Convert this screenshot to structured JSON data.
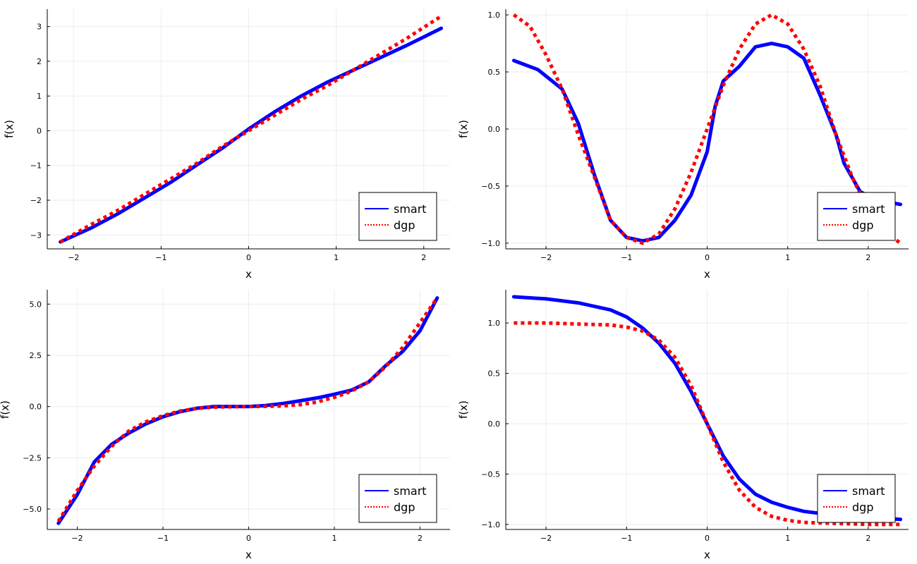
{
  "chart_data": [
    {
      "type": "line",
      "xlabel": "x",
      "ylabel": "f(x)",
      "xlim": [
        -2.3,
        2.3
      ],
      "ylim": [
        -3.4,
        3.5
      ],
      "xticks": [
        -2,
        -1,
        0,
        1,
        2
      ],
      "xtick_labels": [
        "−2",
        "−1",
        "0",
        "1",
        "2"
      ],
      "yticks": [
        -3,
        -2,
        -1,
        0,
        1,
        2,
        3
      ],
      "ytick_labels": [
        "−3",
        "−2",
        "−1",
        "0",
        "1",
        "2",
        "3"
      ],
      "grid": true,
      "legend_position": "bottom-right",
      "series": [
        {
          "name": "smart",
          "color": "#0000ff",
          "style": "solid",
          "x": [
            -2.15,
            -1.8,
            -1.5,
            -1.2,
            -0.9,
            -0.6,
            -0.3,
            0,
            0.3,
            0.6,
            0.9,
            1.2,
            1.5,
            1.8,
            2.2
          ],
          "y": [
            -3.2,
            -2.8,
            -2.4,
            -1.95,
            -1.5,
            -1.0,
            -0.5,
            0.05,
            0.55,
            1.0,
            1.4,
            1.75,
            2.1,
            2.45,
            2.95
          ]
        },
        {
          "name": "dgp",
          "color": "#ff0000",
          "style": "dotted",
          "x": [
            -2.15,
            -1.8,
            -1.5,
            -1.2,
            -0.9,
            -0.6,
            -0.3,
            0,
            0.3,
            0.6,
            0.9,
            1.2,
            1.5,
            1.8,
            2.2
          ],
          "y": [
            -3.2,
            -2.7,
            -2.3,
            -1.85,
            -1.4,
            -0.95,
            -0.45,
            0,
            0.45,
            0.9,
            1.3,
            1.75,
            2.2,
            2.65,
            3.3
          ]
        }
      ]
    },
    {
      "type": "line",
      "xlabel": "x",
      "ylabel": "f(x)",
      "xlim": [
        -2.5,
        2.5
      ],
      "ylim": [
        -1.05,
        1.05
      ],
      "xticks": [
        -2,
        -1,
        0,
        1,
        2
      ],
      "xtick_labels": [
        "−2",
        "−1",
        "0",
        "1",
        "2"
      ],
      "yticks": [
        -1.0,
        -0.5,
        0.0,
        0.5,
        1.0
      ],
      "ytick_labels": [
        "−1.0",
        "−0.5",
        "0.0",
        "0.5",
        "1.0"
      ],
      "grid": true,
      "legend_position": "bottom-right",
      "series": [
        {
          "name": "smart",
          "color": "#0000ff",
          "style": "solid",
          "x": [
            -2.4,
            -2.1,
            -1.8,
            -1.6,
            -1.4,
            -1.2,
            -1.0,
            -0.8,
            -0.6,
            -0.4,
            -0.2,
            0,
            0.1,
            0.2,
            0.4,
            0.6,
            0.8,
            1.0,
            1.2,
            1.4,
            1.6,
            1.7,
            1.9,
            2.1,
            2.4
          ],
          "y": [
            0.6,
            0.52,
            0.35,
            0.05,
            -0.4,
            -0.8,
            -0.95,
            -0.98,
            -0.95,
            -0.8,
            -0.58,
            -0.2,
            0.2,
            0.42,
            0.55,
            0.72,
            0.75,
            0.72,
            0.62,
            0.3,
            -0.05,
            -0.3,
            -0.55,
            -0.62,
            -0.66
          ]
        },
        {
          "name": "dgp",
          "color": "#ff0000",
          "style": "dotted",
          "x": [
            -2.4,
            -2.2,
            -2.0,
            -1.8,
            -1.6,
            -1.4,
            -1.2,
            -1.0,
            -0.8,
            -0.6,
            -0.4,
            -0.2,
            0,
            0.2,
            0.4,
            0.6,
            0.8,
            1.0,
            1.2,
            1.4,
            1.6,
            1.8,
            2.0,
            2.2,
            2.4
          ],
          "y": [
            1.0,
            0.9,
            0.65,
            0.35,
            -0.05,
            -0.42,
            -0.8,
            -0.95,
            -1.0,
            -0.92,
            -0.7,
            -0.38,
            0.0,
            0.38,
            0.7,
            0.92,
            1.0,
            0.92,
            0.7,
            0.38,
            -0.05,
            -0.42,
            -0.72,
            -0.9,
            -1.0
          ]
        }
      ]
    },
    {
      "type": "line",
      "xlabel": "x",
      "ylabel": "f(x)",
      "xlim": [
        -2.35,
        2.35
      ],
      "ylim": [
        -6.0,
        5.7
      ],
      "xticks": [
        -2,
        -1,
        0,
        1,
        2
      ],
      "xtick_labels": [
        "−2",
        "−1",
        "0",
        "1",
        "2"
      ],
      "yticks": [
        -5.0,
        -2.5,
        0.0,
        2.5,
        5.0
      ],
      "ytick_labels": [
        "−5.0",
        "−2.5",
        "0.0",
        "2.5",
        "5.0"
      ],
      "grid": true,
      "legend_position": "bottom-right",
      "series": [
        {
          "name": "smart",
          "color": "#0000ff",
          "style": "solid",
          "x": [
            -2.22,
            -2.0,
            -1.8,
            -1.6,
            -1.4,
            -1.2,
            -1.0,
            -0.8,
            -0.6,
            -0.4,
            -0.2,
            0,
            0.2,
            0.4,
            0.6,
            0.8,
            1.0,
            1.2,
            1.4,
            1.6,
            1.8,
            2.0,
            2.2
          ],
          "y": [
            -5.7,
            -4.3,
            -2.7,
            -1.85,
            -1.3,
            -0.85,
            -0.5,
            -0.25,
            -0.08,
            0.0,
            0.0,
            0.0,
            0.05,
            0.15,
            0.28,
            0.42,
            0.6,
            0.8,
            1.2,
            2.0,
            2.7,
            3.7,
            5.3
          ]
        },
        {
          "name": "dgp",
          "color": "#ff0000",
          "style": "dotted",
          "x": [
            -2.22,
            -2.0,
            -1.8,
            -1.6,
            -1.4,
            -1.2,
            -1.0,
            -0.8,
            -0.6,
            -0.4,
            -0.2,
            0,
            0.2,
            0.4,
            0.6,
            0.8,
            1.0,
            1.2,
            1.4,
            1.6,
            1.8,
            2.0,
            2.2
          ],
          "y": [
            -5.6,
            -4.1,
            -2.9,
            -1.95,
            -1.2,
            -0.75,
            -0.45,
            -0.22,
            -0.09,
            -0.03,
            -0.01,
            0.0,
            0.01,
            0.03,
            0.09,
            0.22,
            0.45,
            0.75,
            1.2,
            1.95,
            2.9,
            4.1,
            5.3
          ]
        }
      ]
    },
    {
      "type": "line",
      "xlabel": "x",
      "ylabel": "f(x)",
      "xlim": [
        -2.5,
        2.5
      ],
      "ylim": [
        -1.05,
        1.33
      ],
      "xticks": [
        -2,
        -1,
        0,
        1,
        2
      ],
      "xtick_labels": [
        "−2",
        "−1",
        "0",
        "1",
        "2"
      ],
      "yticks": [
        -1.0,
        -0.5,
        0.0,
        0.5,
        1.0
      ],
      "ytick_labels": [
        "−1.0",
        "−0.5",
        "0.0",
        "0.5",
        "1.0"
      ],
      "grid": true,
      "legend_position": "bottom-right",
      "series": [
        {
          "name": "smart",
          "color": "#0000ff",
          "style": "solid",
          "x": [
            -2.4,
            -2.0,
            -1.6,
            -1.2,
            -1.0,
            -0.8,
            -0.6,
            -0.4,
            -0.2,
            0,
            0.2,
            0.4,
            0.6,
            0.8,
            1.0,
            1.2,
            1.6,
            2.0,
            2.4
          ],
          "y": [
            1.26,
            1.24,
            1.2,
            1.13,
            1.06,
            0.95,
            0.8,
            0.6,
            0.32,
            0.0,
            -0.32,
            -0.55,
            -0.7,
            -0.78,
            -0.83,
            -0.87,
            -0.91,
            -0.93,
            -0.95
          ]
        },
        {
          "name": "dgp",
          "color": "#ff0000",
          "style": "dotted",
          "x": [
            -2.4,
            -2.0,
            -1.6,
            -1.2,
            -1.0,
            -0.8,
            -0.6,
            -0.4,
            -0.2,
            0,
            0.2,
            0.4,
            0.6,
            0.8,
            1.0,
            1.2,
            1.6,
            2.0,
            2.4
          ],
          "y": [
            1.0,
            1.0,
            0.99,
            0.98,
            0.96,
            0.92,
            0.83,
            0.66,
            0.38,
            0.0,
            -0.38,
            -0.66,
            -0.83,
            -0.92,
            -0.96,
            -0.98,
            -0.99,
            -1.0,
            -1.0
          ]
        }
      ]
    }
  ]
}
